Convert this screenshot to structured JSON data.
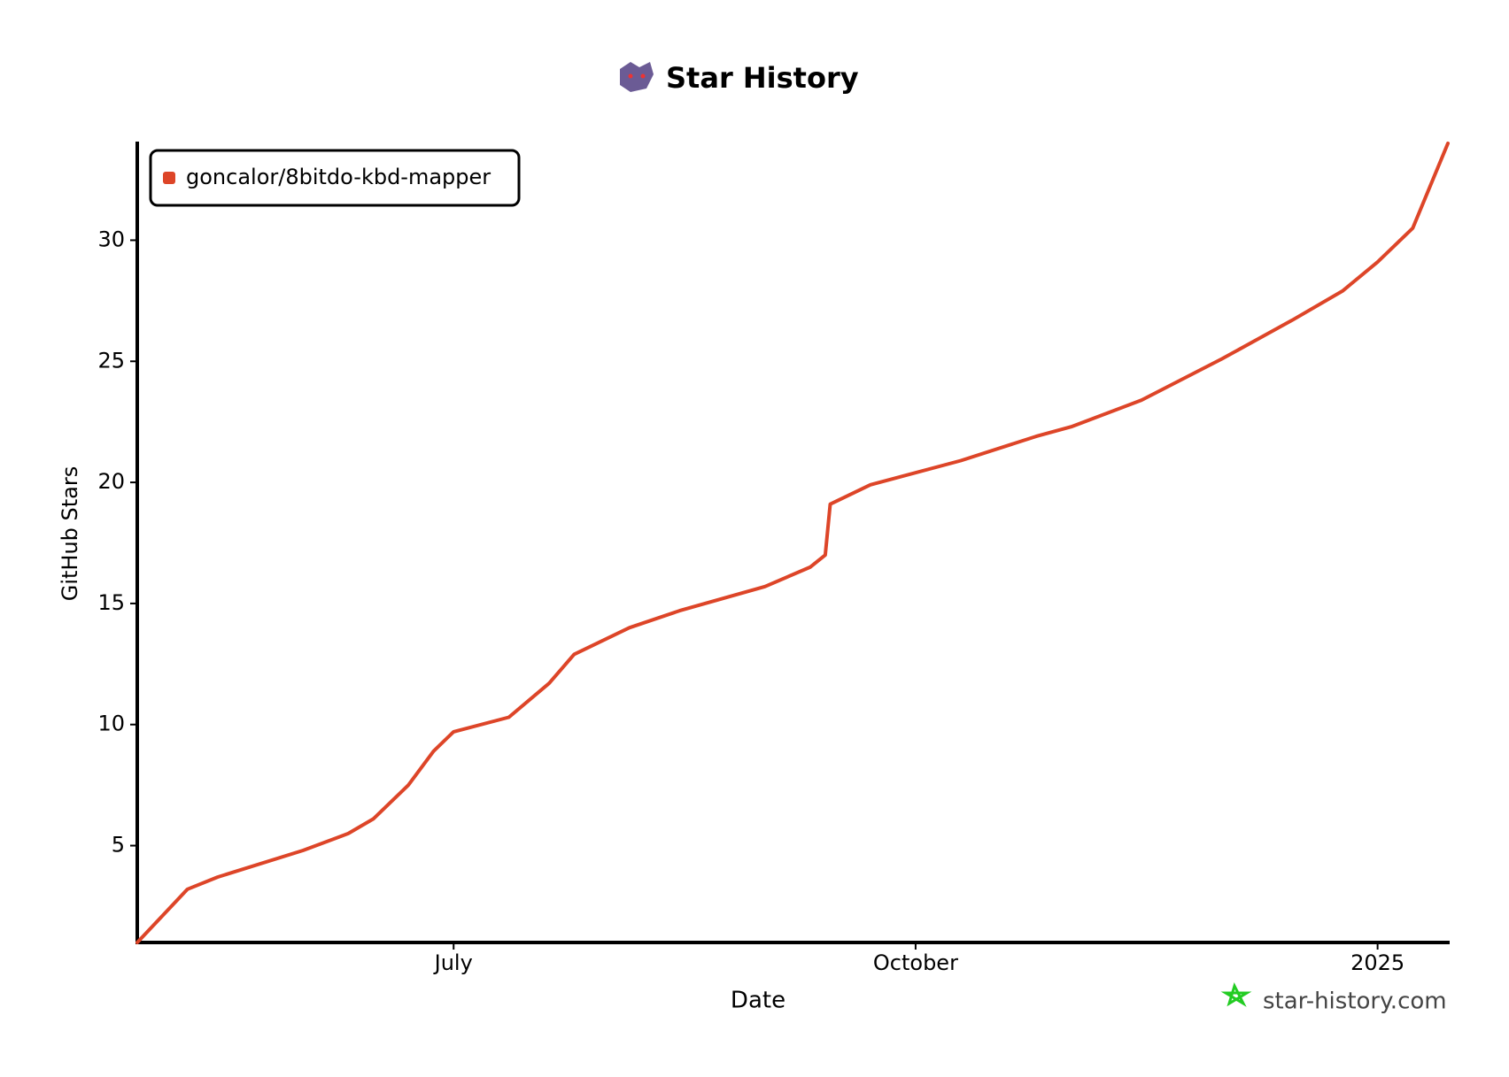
{
  "chart_data": {
    "type": "line",
    "title": "Star History",
    "x_label": "Date",
    "y_label": "GitHub Stars",
    "watermark": "star-history.com",
    "x": [
      "2024-04-29",
      "2024-05-09",
      "2024-05-15",
      "2024-06-01",
      "2024-06-10",
      "2024-06-15",
      "2024-06-22",
      "2024-06-27",
      "2024-07-01",
      "2024-07-12",
      "2024-07-20",
      "2024-07-25",
      "2024-08-05",
      "2024-08-15",
      "2024-09-01",
      "2024-09-10",
      "2024-09-13",
      "2024-09-14",
      "2024-09-22",
      "2024-10-10",
      "2024-10-25",
      "2024-11-01",
      "2024-11-15",
      "2024-12-01",
      "2024-12-15",
      "2024-12-25",
      "2025-01-01",
      "2025-01-08",
      "2025-01-15"
    ],
    "series": [
      {
        "name": "goncalor/8bitdo-kbd-mapper",
        "color": "#dd4528",
        "values": [
          1,
          3.2,
          3.7,
          4.8,
          5.5,
          6.1,
          7.5,
          8.9,
          9.7,
          10.3,
          11.7,
          12.9,
          14,
          14.7,
          15.7,
          16.5,
          17,
          19.1,
          19.9,
          20.9,
          21.9,
          22.3,
          23.4,
          25.1,
          26.7,
          27.9,
          29.1,
          30.5,
          34
        ]
      }
    ],
    "xlim": [
      "2024-04-29",
      "2025-01-15"
    ],
    "xticks": [
      {
        "value": "2024-07-01",
        "label": "July"
      },
      {
        "value": "2024-10-01",
        "label": "October"
      },
      {
        "value": "2025-01-01",
        "label": "2025"
      }
    ],
    "ylim": [
      1,
      34
    ],
    "yticks": [
      5,
      10,
      15,
      20,
      25,
      30
    ],
    "legend": "top-left"
  }
}
